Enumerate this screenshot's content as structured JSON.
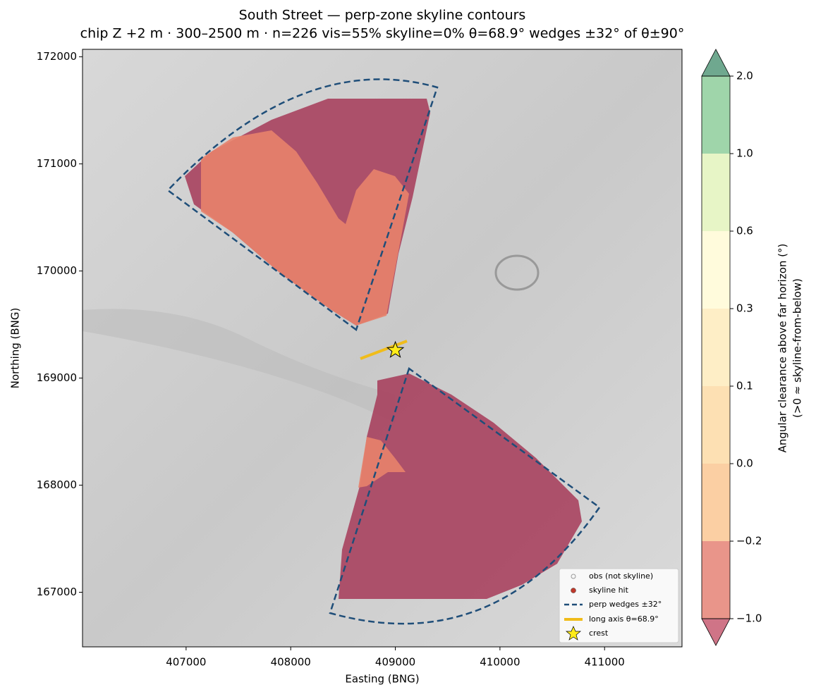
{
  "chart_data": {
    "type": "contour-map",
    "title": "South Street — perp-zone skyline contours",
    "subtitle": "chip Z +2 m · 300–2500 m · n=226  vis=55%  skyline=0%  θ=68.9°  wedges ±32° of θ±90°",
    "x_label": "Easting (BNG)",
    "y_label": "Northing (BNG)",
    "xlim": [
      406010,
      411740
    ],
    "ylim": [
      166490,
      172070
    ],
    "xticks": [
      407000,
      408000,
      409000,
      410000,
      411000
    ],
    "yticks": [
      167000,
      168000,
      169000,
      170000,
      171000,
      172000
    ],
    "crest": {
      "x": 409000,
      "y": 169260
    },
    "legend": [
      "obs (not skyline)",
      "skyline hit",
      "perp wedges ±32°",
      "long axis θ=68.9°",
      "crest"
    ],
    "colorbar": {
      "label": [
        "Angular clearance above far horizon (°)",
        "(>0 ≈ skyline-from-below)"
      ],
      "ticks": [
        {
          "value": -1,
          "label": "−1.0"
        },
        {
          "value": -0.2,
          "label": "−0.2"
        },
        {
          "value": 0,
          "label": "0.0"
        },
        0.1,
        0.3,
        0.6,
        {
          "value": 1,
          "label": "1.0"
        },
        {
          "value": 2,
          "label": "2.0"
        }
      ],
      "colors": [
        "#e9958a",
        "#fbcfa3",
        "#fde0b3",
        "#feeec6",
        "#fffbdc",
        "#e7f5c6",
        "#9fd5aa"
      ],
      "under_color": "#cf7487",
      "over_color": "#6fa88f"
    }
  }
}
